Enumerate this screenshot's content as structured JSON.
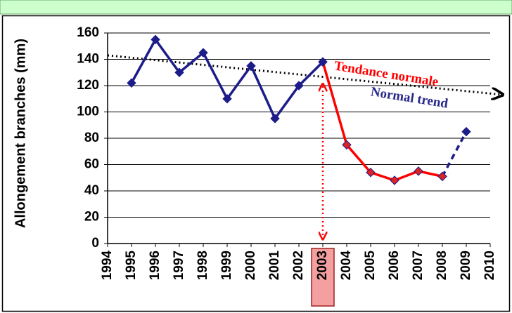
{
  "chart_data": {
    "type": "line",
    "y_label": "Allongement branches (mm)",
    "x": [
      1995,
      1996,
      1997,
      1998,
      1999,
      2000,
      2001,
      2002,
      2003,
      2004,
      2005,
      2006,
      2007,
      2008,
      2009
    ],
    "series": [
      {
        "color": "#1c1c8a",
        "values": [
          122,
          155,
          130,
          145,
          110,
          135,
          95,
          120,
          138,
          null,
          null,
          null,
          null,
          null,
          null
        ]
      },
      {
        "color": "#ff0000",
        "values": [
          null,
          null,
          null,
          null,
          null,
          null,
          null,
          null,
          138,
          75,
          54,
          48,
          55,
          51,
          null
        ]
      },
      {
        "color": "#1c1c8a",
        "dashed": true,
        "values": [
          null,
          null,
          null,
          null,
          null,
          null,
          null,
          null,
          null,
          null,
          null,
          null,
          null,
          51,
          85
        ]
      }
    ],
    "trend": {
      "values": [
        143,
        114
      ],
      "label": "Tendance normale",
      "label_color": "#ff0000",
      "label_en": "Normal trend",
      "label_en_color": "#2a2a8c"
    },
    "highlight_x": 2003,
    "xlim": [
      1994,
      2010
    ],
    "xticks": [
      1994,
      1995,
      1996,
      1997,
      1998,
      1999,
      2000,
      2001,
      2002,
      2003,
      2004,
      2005,
      2006,
      2007,
      2008,
      2009,
      2010
    ],
    "ylim": [
      0,
      160
    ],
    "yticks": [
      0,
      20,
      40,
      60,
      80,
      100,
      120,
      140,
      160
    ],
    "grid": true
  }
}
